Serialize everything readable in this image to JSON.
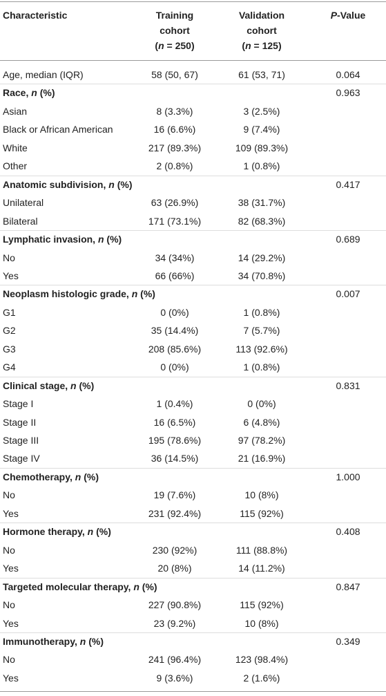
{
  "header": {
    "columns": [
      [
        [
          "Characteristic"
        ]
      ],
      [
        [
          "Training"
        ],
        [
          "cohort"
        ],
        [
          "(",
          {
            "text": "n",
            "style": "italic"
          },
          " = 250)"
        ]
      ],
      [
        [
          "Validation"
        ],
        [
          "cohort"
        ],
        [
          "(",
          {
            "text": "n",
            "style": "italic"
          },
          " = 125)"
        ]
      ],
      [
        [
          {
            "text": "P",
            "style": "italic"
          },
          "-Value"
        ]
      ]
    ]
  },
  "table": {
    "rows": [
      {
        "label": "Age, median (IQR)",
        "training": "58 (50, 67)",
        "validation": "61 (53, 71)",
        "p": "0.064"
      },
      {
        "label": [
          "Race, ",
          {
            "text": "n",
            "style": "italic"
          },
          " (%)"
        ],
        "p": "0.963"
      },
      {
        "label": "Asian",
        "training": "8 (3.3%)",
        "validation": "3 (2.5%)"
      },
      {
        "label": "Black or African American",
        "training": "16 (6.6%)",
        "validation": "9 (7.4%)"
      },
      {
        "label": "White",
        "training": "217 (89.3%)",
        "validation": "109 (89.3%)"
      },
      {
        "label": "Other",
        "training": "2 (0.8%)",
        "validation": "1 (0.8%)"
      },
      {
        "label": [
          "Anatomic subdivision, ",
          {
            "text": "n",
            "style": "italic"
          },
          " (%)"
        ],
        "p": "0.417"
      },
      {
        "label": "Unilateral",
        "training": "63 (26.9%)",
        "validation": "38 (31.7%)"
      },
      {
        "label": "Bilateral",
        "training": "171 (73.1%)",
        "validation": "82 (68.3%)"
      },
      {
        "label": [
          "Lymphatic invasion, ",
          {
            "text": "n",
            "style": "italic"
          },
          " (%)"
        ],
        "p": "0.689"
      },
      {
        "label": "No",
        "training": "34 (34%)",
        "validation": "14 (29.2%)"
      },
      {
        "label": "Yes",
        "training": "66 (66%)",
        "validation": "34 (70.8%)"
      },
      {
        "label": [
          "Neoplasm histologic grade, ",
          {
            "text": "n",
            "style": "italic"
          },
          " (%)"
        ],
        "p": "0.007"
      },
      {
        "label": "G1",
        "training": "0 (0%)",
        "validation": "1 (0.8%)"
      },
      {
        "label": "G2",
        "training": "35 (14.4%)",
        "validation": "7 (5.7%)"
      },
      {
        "label": "G3",
        "training": "208 (85.6%)",
        "validation": "113 (92.6%)"
      },
      {
        "label": "G4",
        "training": "0 (0%)",
        "validation": "1 (0.8%)"
      },
      {
        "label": [
          "Clinical stage, ",
          {
            "text": "n",
            "style": "italic"
          },
          " (%)"
        ],
        "p": "0.831"
      },
      {
        "label": "Stage I",
        "training": "1 (0.4%)",
        "validation": "0 (0%)"
      },
      {
        "label": "Stage II",
        "training": "16 (6.5%)",
        "validation": "6 (4.8%)"
      },
      {
        "label": "Stage III",
        "training": "195 (78.6%)",
        "validation": "97 (78.2%)"
      },
      {
        "label": "Stage IV",
        "training": "36 (14.5%)",
        "validation": "21 (16.9%)"
      },
      {
        "label": [
          "Chemotherapy, ",
          {
            "text": "n",
            "style": "italic"
          },
          " (%)"
        ],
        "p": "1.000"
      },
      {
        "label": "No",
        "training": "19 (7.6%)",
        "validation": "10 (8%)"
      },
      {
        "label": "Yes",
        "training": "231 (92.4%)",
        "validation": "115 (92%)"
      },
      {
        "label": [
          "Hormone therapy, ",
          {
            "text": "n",
            "style": "italic"
          },
          " (%)"
        ],
        "p": "0.408"
      },
      {
        "label": "No",
        "training": "230 (92%)",
        "validation": "111 (88.8%)"
      },
      {
        "label": "Yes",
        "training": "20 (8%)",
        "validation": "14 (11.2%)"
      },
      {
        "label": [
          "Targeted molecular therapy, ",
          {
            "text": "n",
            "style": "italic"
          },
          " (%)"
        ],
        "p": "0.847"
      },
      {
        "label": "No",
        "training": "227 (90.8%)",
        "validation": "115 (92%)"
      },
      {
        "label": "Yes",
        "training": "23 (9.2%)",
        "validation": "10 (8%)"
      },
      {
        "label": [
          "Immunotherapy, ",
          {
            "text": "n",
            "style": "italic"
          },
          " (%)"
        ],
        "p": "0.349"
      },
      {
        "label": "No",
        "training": "241 (96.4%)",
        "validation": "123 (98.4%)"
      },
      {
        "label": "Yes",
        "training": "9 (3.6%)",
        "validation": "2 (1.6%)"
      }
    ]
  }
}
